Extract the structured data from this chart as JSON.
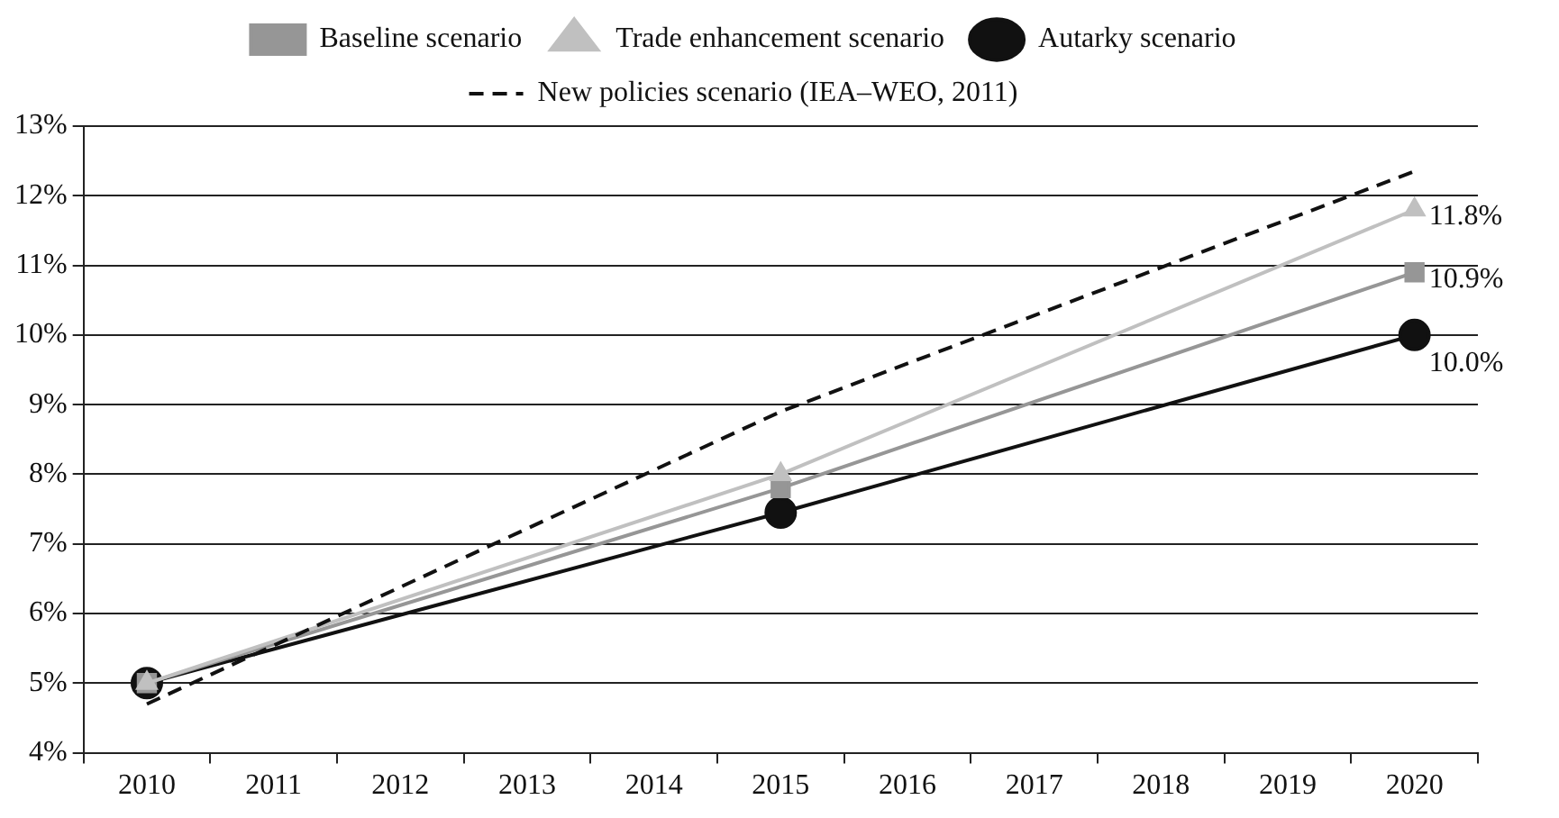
{
  "chart_data": {
    "type": "line",
    "categories": [
      "2010",
      "2011",
      "2012",
      "2013",
      "2014",
      "2015",
      "2016",
      "2017",
      "2018",
      "2019",
      "2020"
    ],
    "series": [
      {
        "name": "Baseline scenario",
        "color": "#969696",
        "marker": "square",
        "values": [
          5.0,
          null,
          null,
          null,
          null,
          7.8,
          null,
          null,
          null,
          null,
          10.9
        ],
        "value_labels": [
          null,
          null,
          null,
          null,
          null,
          null,
          null,
          null,
          null,
          null,
          "10.9%"
        ]
      },
      {
        "name": "Trade enhancement scenario",
        "color": "#c0c0c0",
        "marker": "triangle",
        "values": [
          5.0,
          null,
          null,
          null,
          null,
          8.0,
          null,
          null,
          null,
          null,
          11.8
        ],
        "value_labels": [
          null,
          null,
          null,
          null,
          null,
          null,
          null,
          null,
          null,
          null,
          "11.8%"
        ]
      },
      {
        "name": "Autarky scenario",
        "color": "#111111",
        "marker": "circle",
        "values": [
          5.0,
          null,
          null,
          null,
          null,
          7.45,
          null,
          null,
          null,
          null,
          10.0
        ],
        "value_labels": [
          null,
          null,
          null,
          null,
          null,
          null,
          null,
          null,
          null,
          null,
          "10.0%"
        ]
      },
      {
        "name": "New policies scenario (IEA–WEO, 2011)",
        "color": "#111111",
        "marker": "none",
        "line_style": "dashed",
        "values": [
          4.7,
          null,
          null,
          null,
          null,
          8.9,
          null,
          null,
          null,
          null,
          12.35
        ]
      }
    ],
    "ylim": [
      4,
      13
    ],
    "yticks": [
      {
        "value": 4,
        "label": "4%"
      },
      {
        "value": 5,
        "label": "5%"
      },
      {
        "value": 6,
        "label": "6%"
      },
      {
        "value": 7,
        "label": "7%"
      },
      {
        "value": 8,
        "label": "8%"
      },
      {
        "value": 9,
        "label": "9%"
      },
      {
        "value": 10,
        "label": "10%"
      },
      {
        "value": 11,
        "label": "11%"
      },
      {
        "value": 12,
        "label": "12%"
      },
      {
        "value": 13,
        "label": "13%"
      }
    ],
    "grid": "y",
    "legend": "top"
  }
}
